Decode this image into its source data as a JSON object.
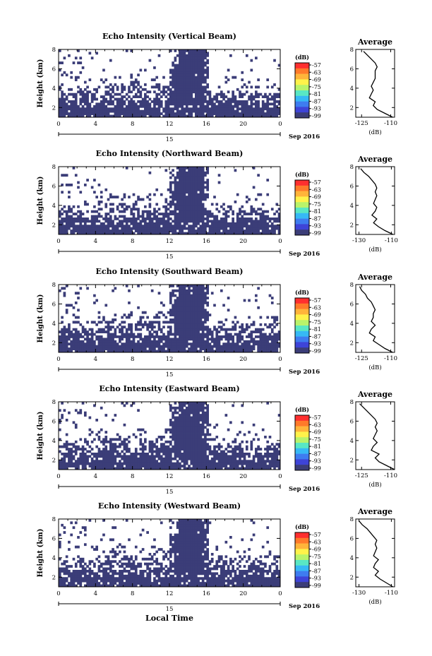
{
  "figure": {
    "xlabel": "Local Time",
    "date_label": "Sep 2016",
    "day_label": "15",
    "colors": {
      "echo": "#3b3d78",
      "background": "#ffffff",
      "line": "#000000"
    }
  },
  "chart_data": [
    {
      "type": "heatmap",
      "title": "Echo Intensity (Vertical Beam)",
      "ylabel": "Height (km)",
      "xticks": [
        "0",
        "4",
        "8",
        "12",
        "16",
        "20",
        "0"
      ],
      "yticks": [
        "2",
        "4",
        "6",
        "8"
      ],
      "xlim": [
        0,
        24
      ],
      "ylim": [
        1,
        8
      ],
      "colorbar": {
        "unit": "(dB)",
        "ticks": [
          "-57",
          "-63",
          "-69",
          "-75",
          "-81",
          "-87",
          "-93",
          "-99"
        ],
        "colors": [
          "#ff2f2f",
          "#ff7a2a",
          "#ffb43a",
          "#fff24a",
          "#b9f36b",
          "#59e7c4",
          "#36b9f5",
          "#3e7cf0",
          "#3e44d8",
          "#3b3d78"
        ]
      },
      "profile": {
        "title": "Average",
        "xlabel": "(dB)",
        "xticks": [
          "-125",
          "-110"
        ],
        "xlim": [
          -128,
          -108
        ],
        "heights": [
          1.0,
          1.4,
          1.8,
          2.2,
          2.6,
          3.0,
          3.4,
          3.8,
          4.2,
          4.6,
          5.0,
          5.4,
          5.8,
          6.2,
          6.6,
          7.0,
          7.4,
          7.8
        ],
        "values": [
          -109,
          -113,
          -117,
          -119,
          -118,
          -121,
          -120,
          -119,
          -120,
          -119,
          -118,
          -118,
          -118,
          -117,
          -118,
          -120,
          -122,
          -124
        ]
      }
    },
    {
      "type": "heatmap",
      "title": "Echo Intensity (Northward Beam)",
      "ylabel": "Height (km)",
      "xticks": [
        "0",
        "4",
        "8",
        "12",
        "16",
        "20",
        "0"
      ],
      "yticks": [
        "2",
        "4",
        "6",
        "8"
      ],
      "xlim": [
        0,
        24
      ],
      "ylim": [
        1,
        8
      ],
      "colorbar": {
        "unit": "(dB)",
        "ticks": [
          "-57",
          "-63",
          "-69",
          "-75",
          "-81",
          "-87",
          "-93",
          "-99"
        ],
        "colors": [
          "#ff2f2f",
          "#ff7a2a",
          "#ffb43a",
          "#fff24a",
          "#b9f36b",
          "#59e7c4",
          "#36b9f5",
          "#3e7cf0",
          "#3e44d8",
          "#3b3d78"
        ]
      },
      "profile": {
        "title": "Average",
        "xlabel": "(dB)",
        "xticks": [
          "-130",
          "-110"
        ],
        "xlim": [
          -132,
          -108
        ],
        "heights": [
          1.0,
          1.4,
          1.8,
          2.2,
          2.6,
          3.0,
          3.4,
          3.8,
          4.2,
          4.6,
          5.0,
          5.4,
          5.8,
          6.2,
          6.6,
          7.0,
          7.4,
          7.8
        ],
        "values": [
          -109,
          -114,
          -118,
          -121,
          -119,
          -122,
          -120,
          -119,
          -121,
          -120,
          -119,
          -120,
          -119,
          -120,
          -122,
          -124,
          -127,
          -129
        ]
      }
    },
    {
      "type": "heatmap",
      "title": "Echo Intensity (Southward Beam)",
      "ylabel": "Height (km)",
      "xticks": [
        "0",
        "4",
        "8",
        "12",
        "16",
        "20",
        "0"
      ],
      "yticks": [
        "2",
        "4",
        "6",
        "8"
      ],
      "xlim": [
        0,
        24
      ],
      "ylim": [
        1,
        8
      ],
      "colorbar": {
        "unit": "(dB)",
        "ticks": [
          "-57",
          "-63",
          "-69",
          "-75",
          "-81",
          "-87",
          "-93",
          "-99"
        ],
        "colors": [
          "#ff2f2f",
          "#ff7a2a",
          "#ffb43a",
          "#fff24a",
          "#b9f36b",
          "#59e7c4",
          "#36b9f5",
          "#3e7cf0",
          "#3e44d8",
          "#3b3d78"
        ]
      },
      "profile": {
        "title": "Average",
        "xlabel": "(dB)",
        "xticks": [
          "-125",
          "-110"
        ],
        "xlim": [
          -128,
          -108
        ],
        "heights": [
          1.0,
          1.4,
          1.8,
          2.2,
          2.6,
          3.0,
          3.4,
          3.8,
          4.2,
          4.6,
          5.0,
          5.4,
          5.8,
          6.2,
          6.6,
          7.0,
          7.4,
          7.8
        ],
        "values": [
          -109,
          -113,
          -116,
          -119,
          -118,
          -121,
          -120,
          -118,
          -120,
          -119,
          -119,
          -118,
          -119,
          -120,
          -122,
          -123,
          -125,
          -126
        ]
      }
    },
    {
      "type": "heatmap",
      "title": "Echo Intensity (Eastward Beam)",
      "ylabel": "Height (km)",
      "xticks": [
        "0",
        "4",
        "8",
        "12",
        "16",
        "20",
        "0"
      ],
      "yticks": [
        "2",
        "4",
        "6",
        "8"
      ],
      "xlim": [
        0,
        24
      ],
      "ylim": [
        1,
        8
      ],
      "colorbar": {
        "unit": "(dB)",
        "ticks": [
          "-57",
          "-63",
          "-69",
          "-75",
          "-81",
          "-87",
          "-93",
          "-99"
        ],
        "colors": [
          "#ff2f2f",
          "#ff7a2a",
          "#ffb43a",
          "#fff24a",
          "#b9f36b",
          "#59e7c4",
          "#36b9f5",
          "#3e7cf0",
          "#3e44d8",
          "#3b3d78"
        ]
      },
      "profile": {
        "title": "Average",
        "xlabel": "(dB)",
        "xticks": [
          "-125",
          "-110"
        ],
        "xlim": [
          -128,
          -108
        ],
        "heights": [
          1.0,
          1.4,
          1.8,
          2.2,
          2.6,
          3.0,
          3.4,
          3.8,
          4.2,
          4.6,
          5.0,
          5.4,
          5.8,
          6.2,
          6.6,
          7.0,
          7.4,
          7.8
        ],
        "values": [
          -108,
          -112,
          -116,
          -118,
          -116,
          -120,
          -119,
          -117,
          -119,
          -118,
          -117,
          -118,
          -117,
          -118,
          -120,
          -122,
          -124,
          -126
        ]
      }
    },
    {
      "type": "heatmap",
      "title": "Echo Intensity (Westward Beam)",
      "ylabel": "Height (km)",
      "xticks": [
        "0",
        "4",
        "8",
        "12",
        "16",
        "20",
        "0"
      ],
      "yticks": [
        "2",
        "4",
        "6",
        "8"
      ],
      "xlim": [
        0,
        24
      ],
      "ylim": [
        1,
        8
      ],
      "colorbar": {
        "unit": "(dB)",
        "ticks": [
          "-57",
          "-63",
          "-69",
          "-75",
          "-81",
          "-87",
          "-93",
          "-99"
        ],
        "colors": [
          "#ff2f2f",
          "#ff7a2a",
          "#ffb43a",
          "#fff24a",
          "#b9f36b",
          "#59e7c4",
          "#36b9f5",
          "#3e7cf0",
          "#3e44d8",
          "#3b3d78"
        ]
      },
      "profile": {
        "title": "Average",
        "xlabel": "(dB)",
        "xticks": [
          "-130",
          "-110"
        ],
        "xlim": [
          -132,
          -108
        ],
        "heights": [
          1.0,
          1.4,
          1.8,
          2.2,
          2.6,
          3.0,
          3.4,
          3.8,
          4.2,
          4.6,
          5.0,
          5.4,
          5.8,
          6.2,
          6.6,
          7.0,
          7.4,
          7.8
        ],
        "values": [
          -109,
          -113,
          -117,
          -120,
          -118,
          -121,
          -120,
          -118,
          -121,
          -120,
          -119,
          -120,
          -119,
          -121,
          -123,
          -125,
          -128,
          -130
        ]
      }
    }
  ]
}
